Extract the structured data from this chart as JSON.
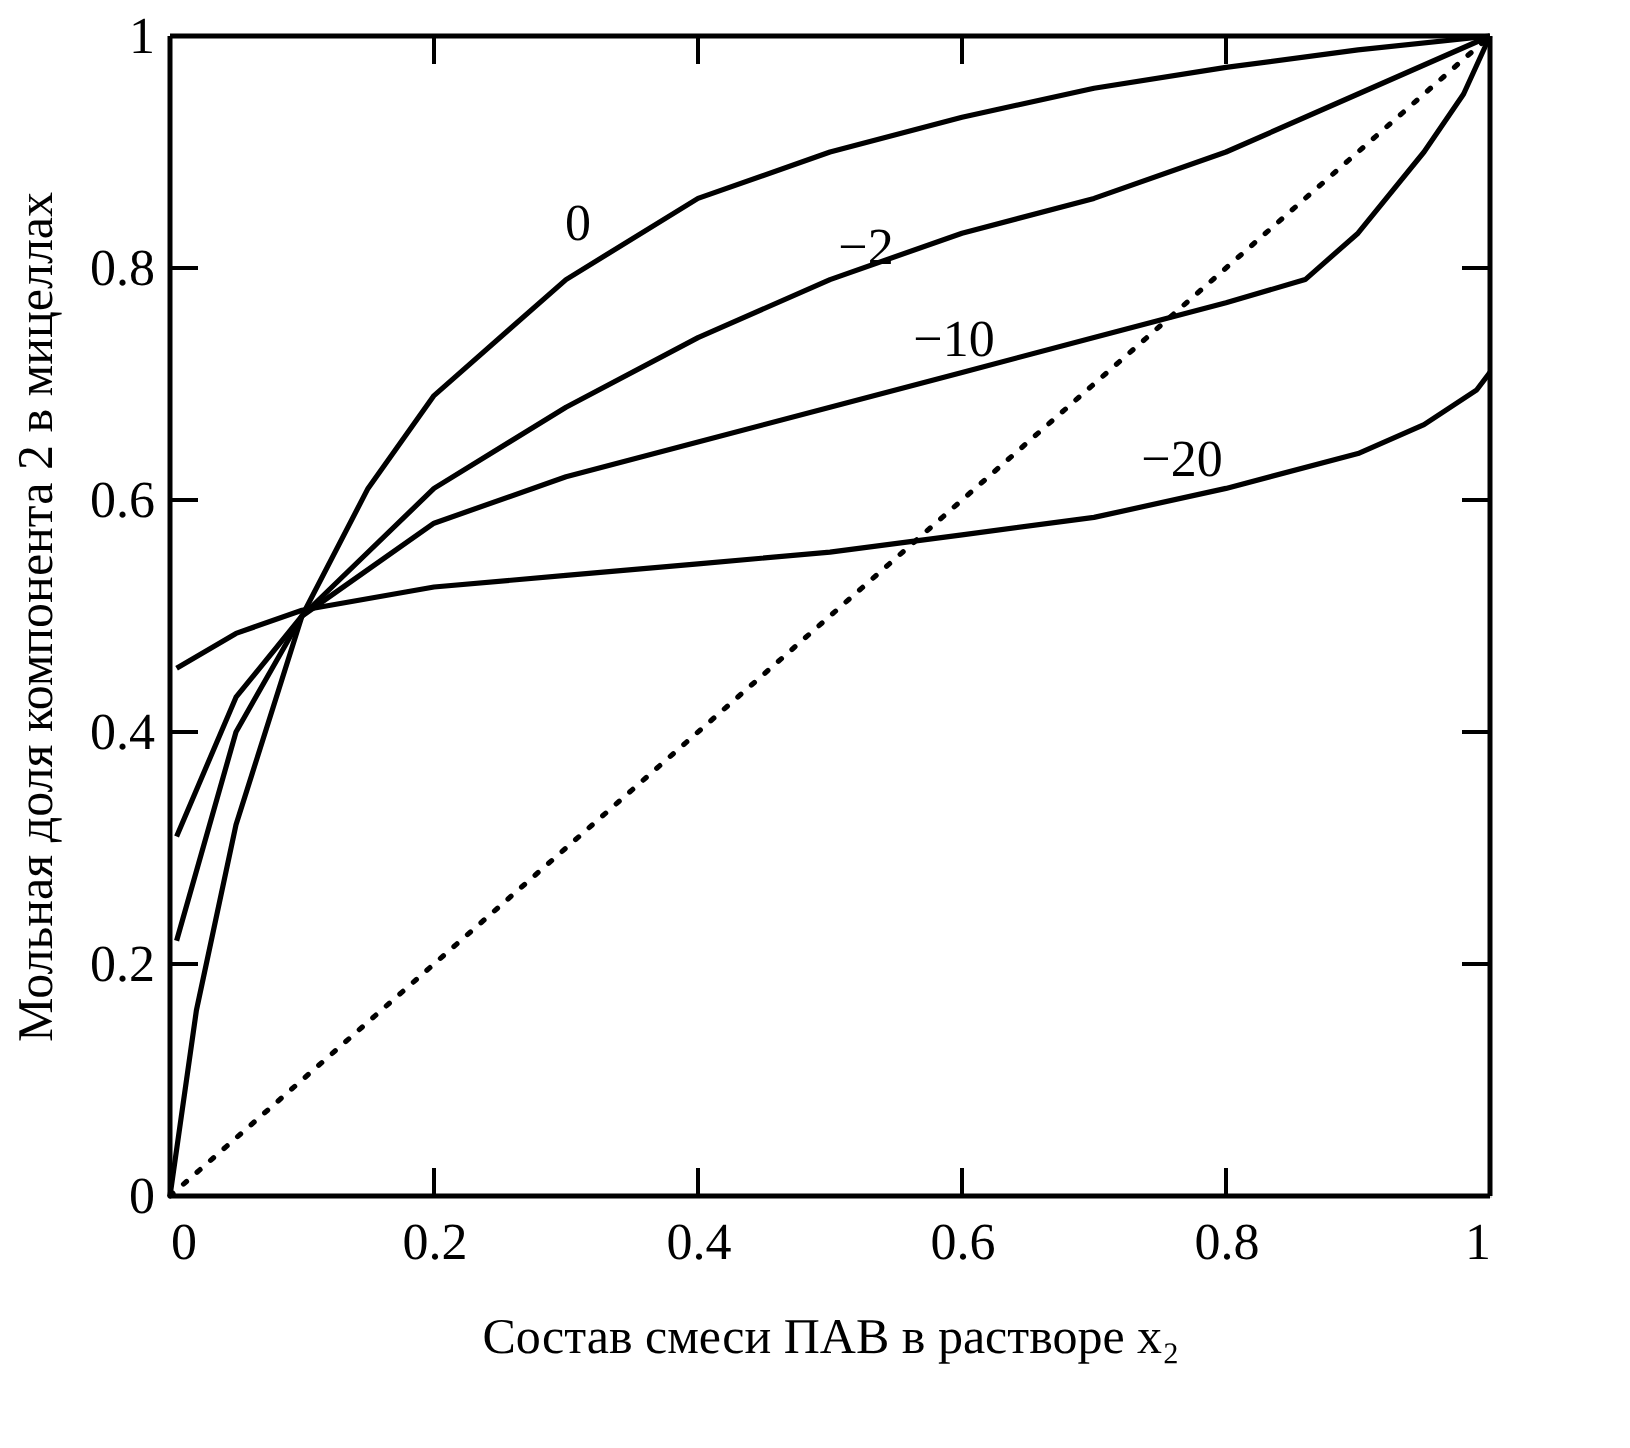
{
  "chart_data": {
    "type": "line",
    "xlabel": "Состав смеси ПАВ в растворе x₂",
    "ylabel": "Мольная доля компонента 2 в мицеллах",
    "xlim": [
      0,
      1
    ],
    "ylim": [
      0,
      1
    ],
    "xticks": [
      0,
      0.2,
      0.4,
      0.6,
      0.8,
      1
    ],
    "yticks": [
      0,
      0.2,
      0.4,
      0.6,
      0.8,
      1
    ],
    "grid": false,
    "legend": false,
    "marker": "none",
    "series": [
      {
        "name": "0",
        "color": "#000000",
        "line_style": "solid",
        "x": [
          0,
          0.02,
          0.05,
          0.1,
          0.15,
          0.2,
          0.3,
          0.4,
          0.5,
          0.6,
          0.7,
          0.8,
          0.9,
          1
        ],
        "values": [
          0,
          0.16,
          0.32,
          0.5,
          0.61,
          0.69,
          0.79,
          0.86,
          0.9,
          0.93,
          0.955,
          0.973,
          0.988,
          1
        ]
      },
      {
        "name": "−2",
        "color": "#000000",
        "line_style": "solid",
        "x": [
          0.005,
          0.05,
          0.1,
          0.2,
          0.3,
          0.4,
          0.5,
          0.6,
          0.7,
          0.8,
          0.9,
          1
        ],
        "values": [
          0.22,
          0.4,
          0.5,
          0.61,
          0.68,
          0.74,
          0.79,
          0.83,
          0.86,
          0.9,
          0.95,
          1
        ]
      },
      {
        "name": "−10",
        "color": "#000000",
        "line_style": "solid",
        "x": [
          0.005,
          0.05,
          0.1,
          0.2,
          0.3,
          0.4,
          0.5,
          0.6,
          0.7,
          0.8,
          0.86,
          0.9,
          0.95,
          0.98,
          1
        ],
        "values": [
          0.31,
          0.43,
          0.5,
          0.58,
          0.62,
          0.65,
          0.68,
          0.71,
          0.74,
          0.77,
          0.79,
          0.83,
          0.9,
          0.95,
          1
        ]
      },
      {
        "name": "−20",
        "color": "#000000",
        "line_style": "solid",
        "x": [
          0.005,
          0.05,
          0.1,
          0.2,
          0.3,
          0.4,
          0.5,
          0.6,
          0.7,
          0.8,
          0.9,
          0.95,
          0.99,
          1
        ],
        "values": [
          0.455,
          0.485,
          0.505,
          0.525,
          0.535,
          0.545,
          0.555,
          0.57,
          0.585,
          0.61,
          0.64,
          0.665,
          0.695,
          0.71
        ]
      },
      {
        "color": "#000000",
        "line_style": "dotted",
        "x": [
          0,
          1
        ],
        "values": [
          0,
          1
        ]
      }
    ]
  }
}
